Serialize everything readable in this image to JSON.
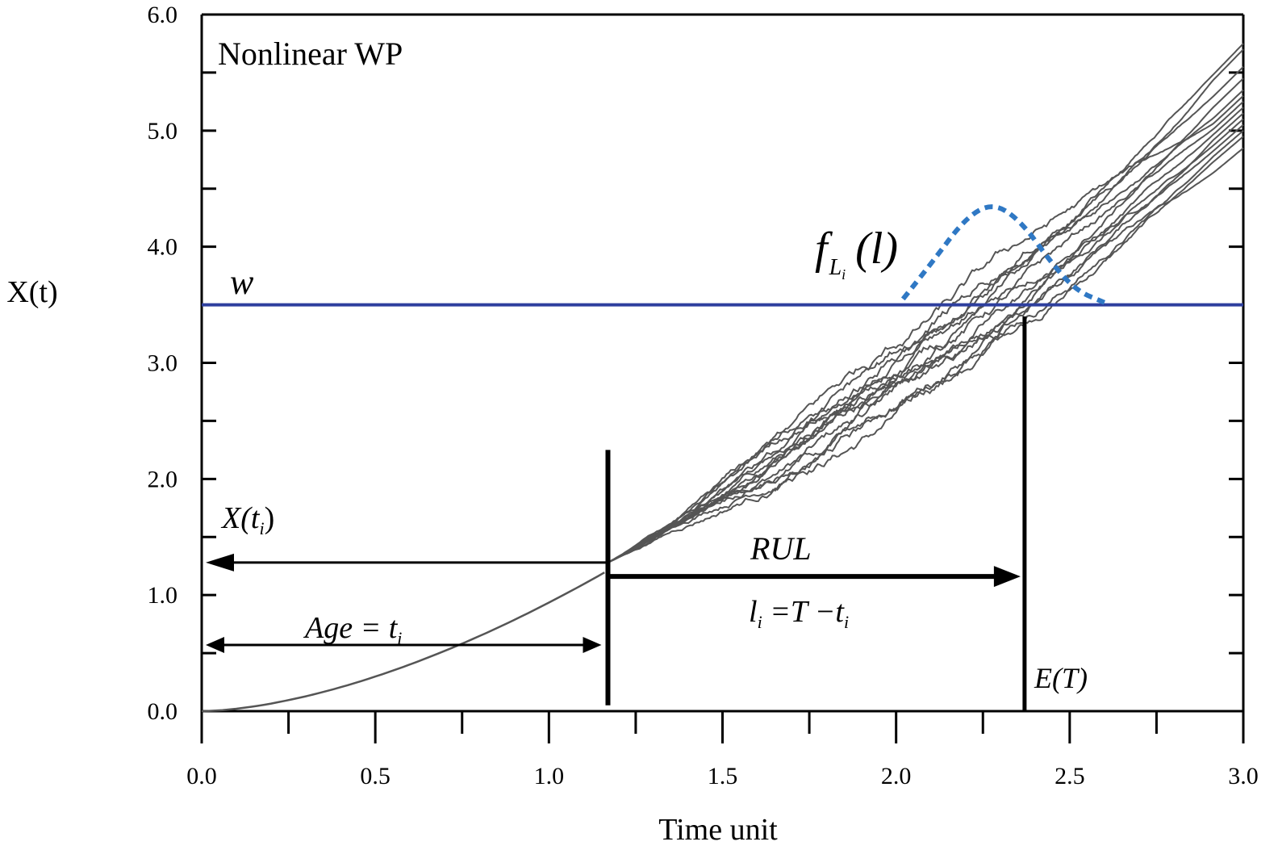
{
  "chart_data": {
    "type": "line",
    "title": "Nonlinear WP",
    "xlabel": "Time unit",
    "ylabel": "X(t)",
    "xlim": [
      0,
      3
    ],
    "ylim": [
      0,
      6
    ],
    "xticks": [
      0.0,
      0.5,
      1.0,
      1.5,
      2.0,
      2.5,
      3.0
    ],
    "xtick_labels": [
      "0.0",
      "0.5",
      "1.0",
      "1.5",
      "2.0",
      "2.5",
      "3.0"
    ],
    "yticks": [
      0.0,
      1.0,
      2.0,
      3.0,
      4.0,
      5.0,
      6.0
    ],
    "ytick_labels": [
      "0.0",
      "1.0",
      "2.0",
      "3.0",
      "4.0",
      "5.0",
      "6.0"
    ],
    "grid": false,
    "threshold": {
      "label": "w",
      "y": 3.5,
      "color": "#2e3f9e"
    },
    "current_time": {
      "t": 1.17,
      "x": 1.28
    },
    "expected_failure_time": 2.37,
    "degradation_mean": {
      "x": [
        0,
        0.25,
        0.5,
        0.75,
        1.0,
        1.17,
        1.5,
        2.0,
        2.5,
        3.0
      ],
      "y": [
        0,
        0.09,
        0.32,
        0.63,
        0.98,
        1.28,
        1.86,
        2.95,
        4.2,
        5.3
      ]
    },
    "simulated_paths": {
      "count": 14,
      "start_t": 1.17,
      "end_values": [
        4.85,
        4.95,
        5.0,
        5.05,
        5.1,
        5.15,
        5.2,
        5.25,
        5.3,
        5.35,
        5.45,
        5.55,
        5.7,
        5.75
      ],
      "color": "#555555"
    },
    "rul_pdf": {
      "label_main": "f",
      "label_sub": "L",
      "label_subsub": "i",
      "label_arg": "(l)",
      "x": [
        2.02,
        2.1,
        2.2,
        2.28,
        2.36,
        2.45,
        2.52,
        2.6
      ],
      "y": [
        3.55,
        3.85,
        4.25,
        4.38,
        4.22,
        3.85,
        3.62,
        3.52
      ],
      "color": "#2f78c4"
    },
    "annotations": {
      "x_ti": {
        "main": "X(t",
        "sub": "i",
        "close": ")"
      },
      "rul": "RUL",
      "rul_eq": {
        "l": "l",
        "sub": "i",
        "eq": " =T −t",
        "sub2": "i"
      },
      "age": {
        "main": "Age = t",
        "sub": "i"
      },
      "et": "E(T)"
    }
  }
}
